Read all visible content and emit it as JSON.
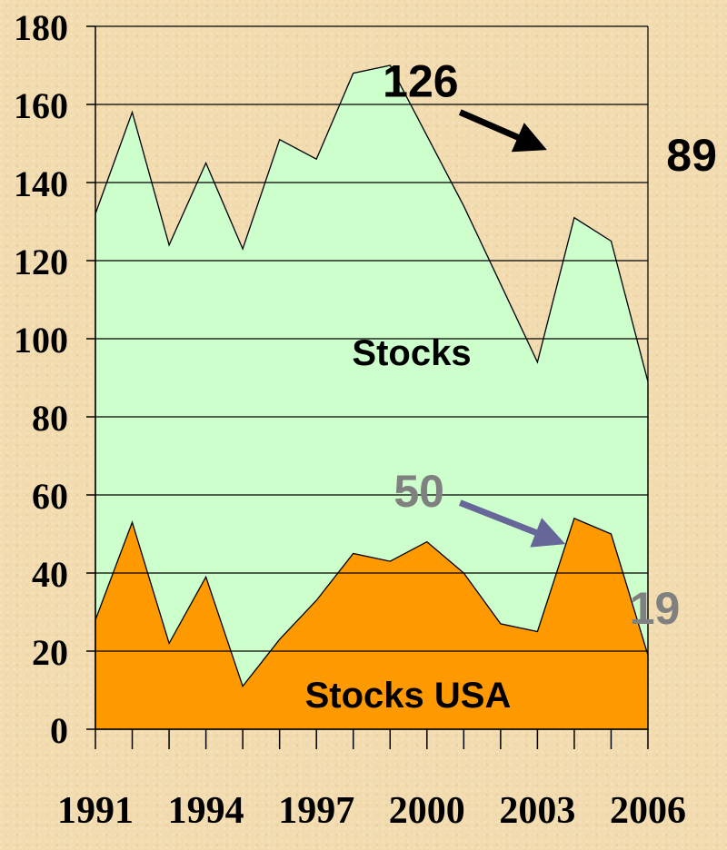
{
  "chart_data": {
    "type": "area",
    "x": [
      1991,
      1992,
      1993,
      1994,
      1995,
      1996,
      1997,
      1998,
      1999,
      2000,
      2001,
      2002,
      2003,
      2004,
      2005,
      2006
    ],
    "x_tick_labels": [
      "1991",
      "1994",
      "1997",
      "2000",
      "2003",
      "2006"
    ],
    "ylim": [
      0,
      180
    ],
    "y_tick_labels": [
      "0",
      "20",
      "40",
      "60",
      "80",
      "100",
      "120",
      "140",
      "160",
      "180"
    ],
    "grid": "horizontal",
    "series": [
      {
        "name": "Stocks",
        "color": "#ccffcc",
        "values": [
          132,
          158,
          124,
          145,
          123,
          151,
          146,
          168,
          170,
          152,
          134,
          114,
          94,
          131,
          125,
          89
        ]
      },
      {
        "name": "Stocks USA",
        "color": "#ff9900",
        "values": [
          28,
          53,
          22,
          39,
          11,
          23,
          33,
          45,
          43,
          48,
          40,
          27,
          25,
          54,
          50,
          19
        ]
      }
    ],
    "annotations": [
      {
        "text": "126",
        "color": "#000000",
        "arrow_color": "#000000",
        "x": 1998.8,
        "y": 162,
        "arrow_from": [
          2000.9,
          158
        ],
        "arrow_to": [
          2003.1,
          149
        ]
      },
      {
        "text": "89",
        "color": "#000000",
        "x": 2006.5,
        "y": 143
      },
      {
        "text": "50",
        "color": "#808080",
        "arrow_color": "#666699",
        "x": 1999.1,
        "y": 57,
        "arrow_from": [
          2000.9,
          58
        ],
        "arrow_to": [
          2003.6,
          48
        ]
      },
      {
        "text": "19",
        "color": "#808080",
        "x": 2005.5,
        "y": 27
      }
    ]
  }
}
